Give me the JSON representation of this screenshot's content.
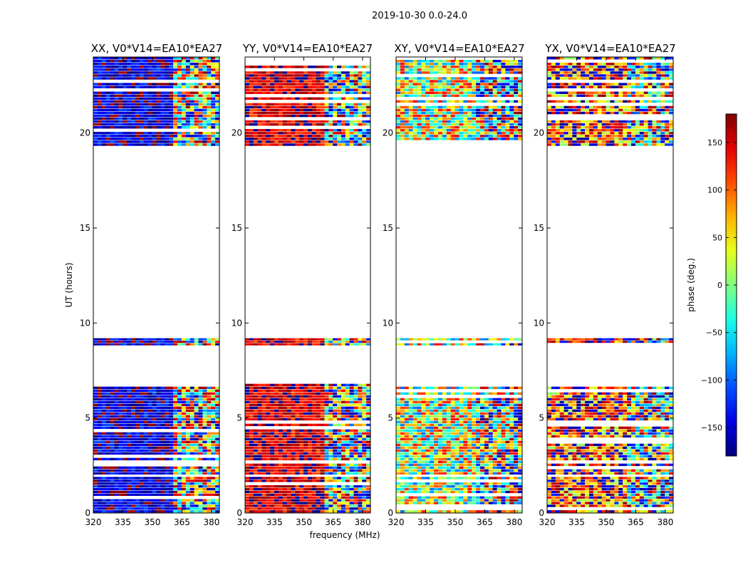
{
  "chart_data": {
    "type": "heatmap",
    "title": "2019-10-30 0.0-24.0",
    "xlabel": "frequency (MHz)",
    "ylabel": "UT (hours)",
    "xlim": [
      320,
      384
    ],
    "ylim": [
      0,
      24
    ],
    "xticks": [
      "320",
      "335",
      "350",
      "365",
      "380"
    ],
    "yticks": [
      "0",
      "5",
      "10",
      "15",
      "20"
    ],
    "panels": [
      {
        "title": "XX, V0*V14=EA10*EA27",
        "base_phase": -150,
        "spread": 45
      },
      {
        "title": "YY, V0*V14=EA10*EA27",
        "base_phase": 150,
        "spread": 45
      },
      {
        "title": "XY, V0*V14=EA10*EA27",
        "base_phase": 20,
        "spread": 120
      },
      {
        "title": "YX, V0*V14=EA10*EA27",
        "base_phase": 120,
        "spread": 120
      }
    ],
    "data_segments_hours": [
      [
        0.0,
        1.9
      ],
      [
        2.0,
        5.0
      ],
      [
        5.0,
        6.8
      ],
      [
        8.8,
        9.2
      ],
      [
        19.3,
        24.0
      ]
    ],
    "colorbar": {
      "label": "phase (deg.)",
      "range": [
        -180,
        180
      ],
      "ticks": [
        "150",
        "100",
        "50",
        "0",
        "−50",
        "−100",
        "−150"
      ],
      "tick_values": [
        150,
        100,
        50,
        0,
        -50,
        -100,
        -150
      ],
      "colormap": "jet"
    }
  }
}
